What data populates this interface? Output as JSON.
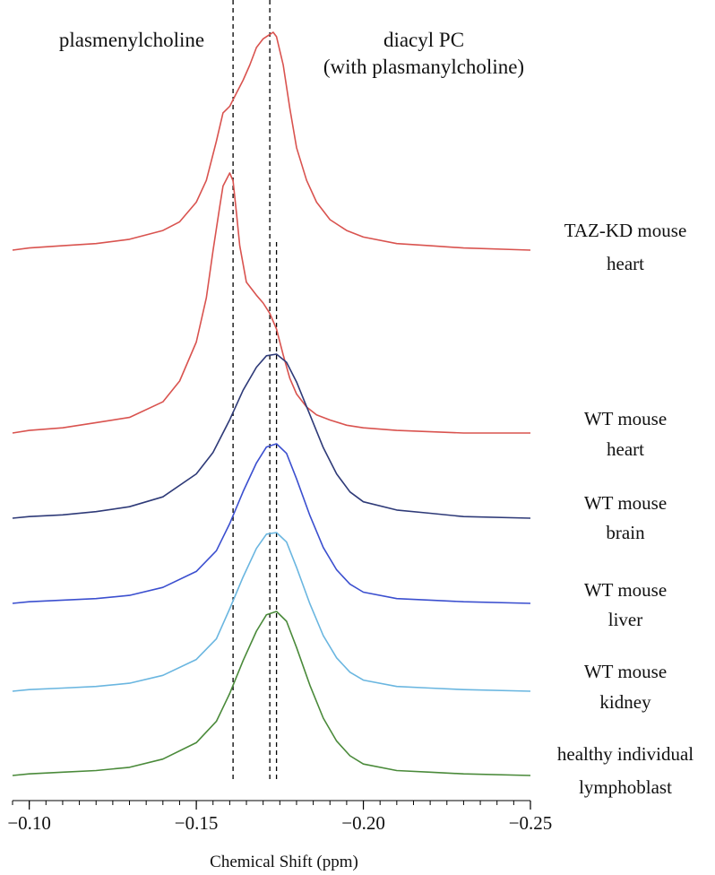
{
  "chart_data": {
    "type": "line",
    "xlabel": "Chemical Shift  (ppm)",
    "x_reversed": true,
    "xlim": [
      -0.095,
      -0.25
    ],
    "x_ticks": [
      -0.1,
      -0.15,
      -0.2,
      -0.25
    ],
    "x_tick_labels": [
      "−0.10",
      "−0.15",
      "−0.20",
      "−0.25"
    ],
    "grid": false,
    "annotations": {
      "left": "plasmenylcholine",
      "right_line1": "diacyl PC",
      "right_line2": "(with plasmanylcholine)"
    },
    "reference_lines": [
      -0.161,
      -0.172,
      -0.174
    ],
    "series": [
      {
        "label_lines": [
          "TAZ-KD mouse",
          "heart"
        ],
        "color": "#d9534f",
        "x": [
          -0.095,
          -0.1,
          -0.11,
          -0.12,
          -0.13,
          -0.14,
          -0.145,
          -0.15,
          -0.153,
          -0.156,
          -0.158,
          -0.16,
          -0.162,
          -0.164,
          -0.166,
          -0.168,
          -0.17,
          -0.172,
          -0.173,
          -0.174,
          -0.176,
          -0.178,
          -0.18,
          -0.183,
          -0.186,
          -0.19,
          -0.195,
          -0.2,
          -0.21,
          -0.22,
          -0.23,
          -0.25
        ],
        "values": [
          0.0,
          0.01,
          0.02,
          0.03,
          0.05,
          0.09,
          0.13,
          0.22,
          0.32,
          0.5,
          0.63,
          0.66,
          0.72,
          0.78,
          0.85,
          0.93,
          0.97,
          0.99,
          1.0,
          0.98,
          0.85,
          0.65,
          0.47,
          0.32,
          0.22,
          0.14,
          0.09,
          0.06,
          0.03,
          0.02,
          0.01,
          0.0
        ]
      },
      {
        "label_lines": [
          "WT mouse",
          "heart"
        ],
        "color": "#d9534f",
        "x": [
          -0.095,
          -0.1,
          -0.11,
          -0.12,
          -0.13,
          -0.14,
          -0.145,
          -0.15,
          -0.153,
          -0.155,
          -0.157,
          -0.158,
          -0.16,
          -0.161,
          -0.162,
          -0.163,
          -0.165,
          -0.168,
          -0.17,
          -0.172,
          -0.174,
          -0.176,
          -0.178,
          -0.18,
          -0.183,
          -0.186,
          -0.19,
          -0.195,
          -0.2,
          -0.21,
          -0.23,
          -0.25
        ],
        "values": [
          0.0,
          0.01,
          0.02,
          0.04,
          0.06,
          0.12,
          0.2,
          0.35,
          0.52,
          0.7,
          0.87,
          0.95,
          1.0,
          0.97,
          0.85,
          0.72,
          0.58,
          0.53,
          0.5,
          0.46,
          0.4,
          0.3,
          0.21,
          0.15,
          0.1,
          0.07,
          0.05,
          0.03,
          0.02,
          0.01,
          0.0,
          0.0
        ]
      },
      {
        "label_lines": [
          "WT mouse",
          "brain"
        ],
        "color": "#2e3a78",
        "x": [
          -0.095,
          -0.1,
          -0.11,
          -0.12,
          -0.13,
          -0.14,
          -0.15,
          -0.155,
          -0.16,
          -0.164,
          -0.168,
          -0.171,
          -0.174,
          -0.177,
          -0.18,
          -0.184,
          -0.188,
          -0.192,
          -0.196,
          -0.2,
          -0.21,
          -0.22,
          -0.23,
          -0.25
        ],
        "values": [
          0.0,
          0.01,
          0.02,
          0.04,
          0.07,
          0.13,
          0.27,
          0.4,
          0.6,
          0.78,
          0.92,
          0.99,
          1.0,
          0.95,
          0.83,
          0.63,
          0.43,
          0.27,
          0.16,
          0.1,
          0.05,
          0.03,
          0.01,
          0.0
        ]
      },
      {
        "label_lines": [
          "WT mouse",
          "liver"
        ],
        "color": "#3b4fcf",
        "x": [
          -0.095,
          -0.1,
          -0.11,
          -0.12,
          -0.13,
          -0.14,
          -0.15,
          -0.156,
          -0.16,
          -0.164,
          -0.168,
          -0.171,
          -0.174,
          -0.177,
          -0.18,
          -0.184,
          -0.188,
          -0.192,
          -0.196,
          -0.2,
          -0.21,
          -0.22,
          -0.23,
          -0.25
        ],
        "values": [
          0.0,
          0.01,
          0.02,
          0.03,
          0.05,
          0.1,
          0.2,
          0.33,
          0.5,
          0.7,
          0.88,
          0.98,
          1.0,
          0.94,
          0.78,
          0.55,
          0.35,
          0.21,
          0.12,
          0.07,
          0.03,
          0.02,
          0.01,
          0.0
        ]
      },
      {
        "label_lines": [
          "WT mouse",
          "kidney"
        ],
        "color": "#6ab6e0",
        "x": [
          -0.095,
          -0.1,
          -0.11,
          -0.12,
          -0.13,
          -0.14,
          -0.15,
          -0.156,
          -0.16,
          -0.164,
          -0.168,
          -0.171,
          -0.174,
          -0.177,
          -0.18,
          -0.184,
          -0.188,
          -0.192,
          -0.196,
          -0.2,
          -0.21,
          -0.22,
          -0.23,
          -0.25
        ],
        "values": [
          0.0,
          0.01,
          0.02,
          0.03,
          0.05,
          0.1,
          0.2,
          0.33,
          0.52,
          0.72,
          0.9,
          0.99,
          1.0,
          0.94,
          0.78,
          0.55,
          0.35,
          0.21,
          0.12,
          0.07,
          0.03,
          0.02,
          0.01,
          0.0
        ]
      },
      {
        "label_lines": [
          "healthy individual",
          "lymphoblast"
        ],
        "color": "#4a8a3a",
        "x": [
          -0.095,
          -0.1,
          -0.11,
          -0.12,
          -0.13,
          -0.14,
          -0.15,
          -0.156,
          -0.16,
          -0.164,
          -0.168,
          -0.171,
          -0.174,
          -0.177,
          -0.18,
          -0.184,
          -0.188,
          -0.192,
          -0.196,
          -0.2,
          -0.21,
          -0.22,
          -0.23,
          -0.25
        ],
        "values": [
          0.0,
          0.01,
          0.02,
          0.03,
          0.05,
          0.1,
          0.2,
          0.33,
          0.5,
          0.7,
          0.88,
          0.98,
          1.0,
          0.94,
          0.78,
          0.55,
          0.35,
          0.21,
          0.12,
          0.07,
          0.03,
          0.02,
          0.01,
          0.0
        ]
      }
    ]
  }
}
